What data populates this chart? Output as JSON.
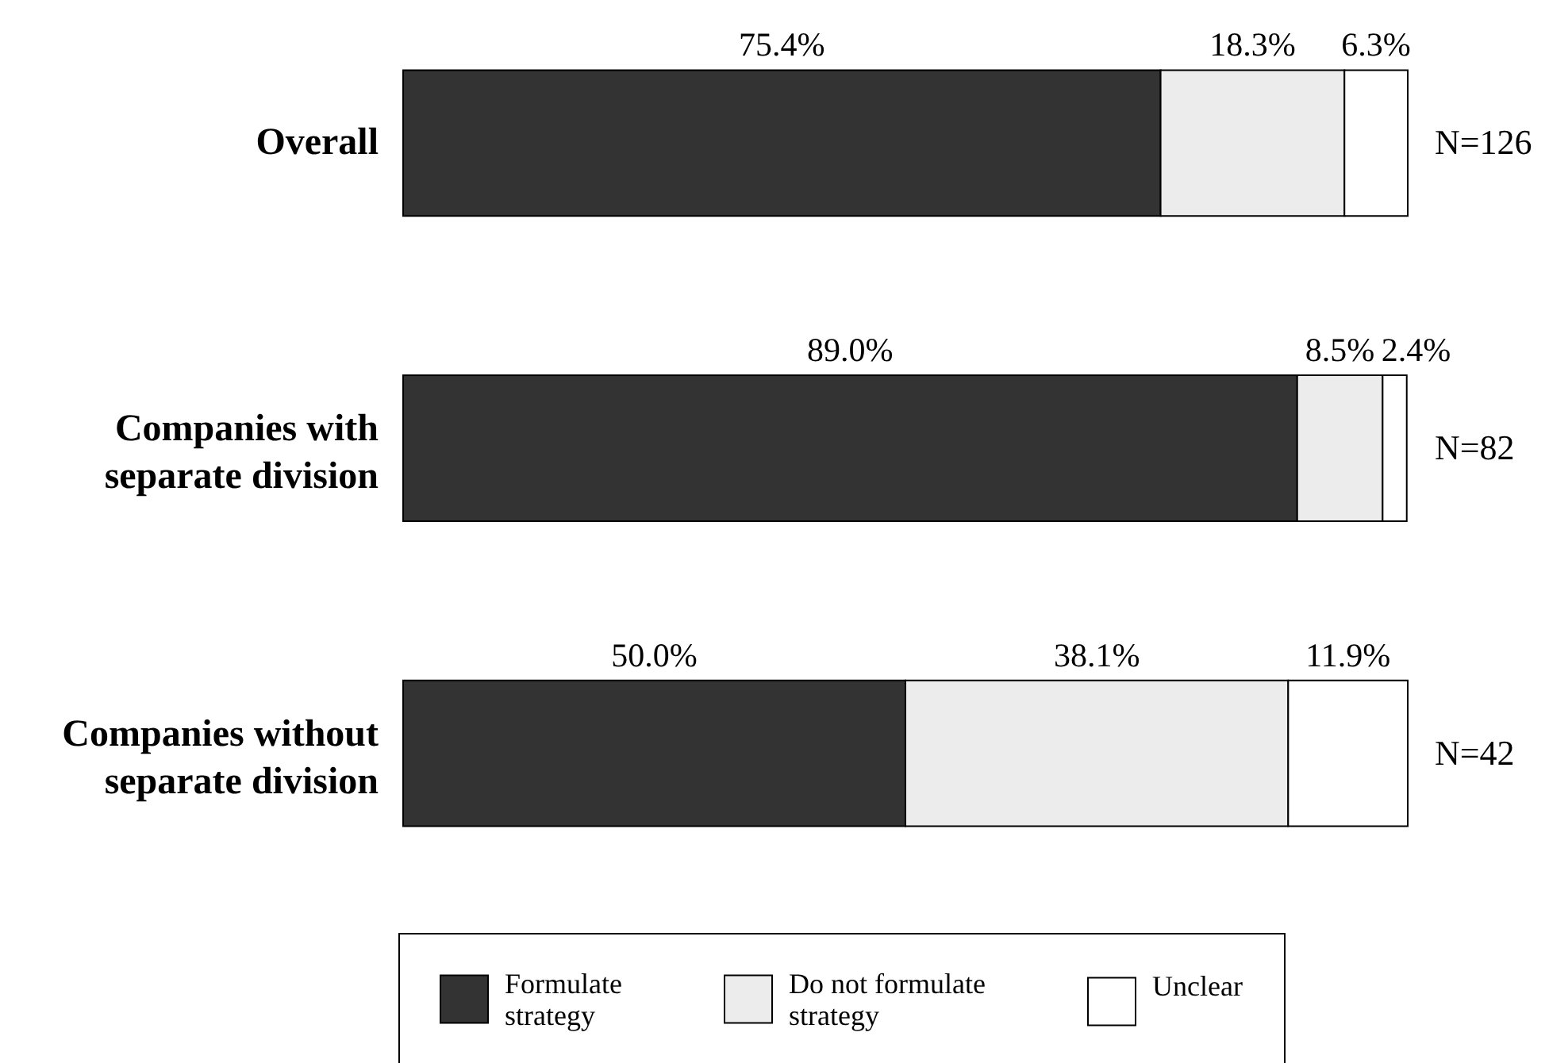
{
  "chart_data": {
    "type": "bar",
    "orientation": "horizontal",
    "stacked": true,
    "categories": [
      "Overall",
      "Companies with separate division",
      "Companies without separate division"
    ],
    "series": [
      {
        "name": "Formulate strategy",
        "color": "#333333",
        "values": [
          75.4,
          89.0,
          50.0
        ],
        "value_labels": [
          "75.4%",
          "89.0%",
          "50.0%"
        ]
      },
      {
        "name": "Do not formulate strategy",
        "color": "#ececec",
        "values": [
          18.3,
          8.5,
          38.1
        ],
        "value_labels": [
          "18.3%",
          "8.5%",
          "38.1%"
        ]
      },
      {
        "name": "Unclear",
        "color": "#ffffff",
        "values": [
          6.3,
          2.4,
          11.9
        ],
        "value_labels": [
          "6.3%",
          "2.4%",
          "11.9%"
        ]
      }
    ],
    "xlim": [
      0,
      100
    ],
    "tick_labels": "y",
    "legend": "bottom",
    "annotations": [
      "N=126",
      "N=82",
      "N=42"
    ]
  }
}
